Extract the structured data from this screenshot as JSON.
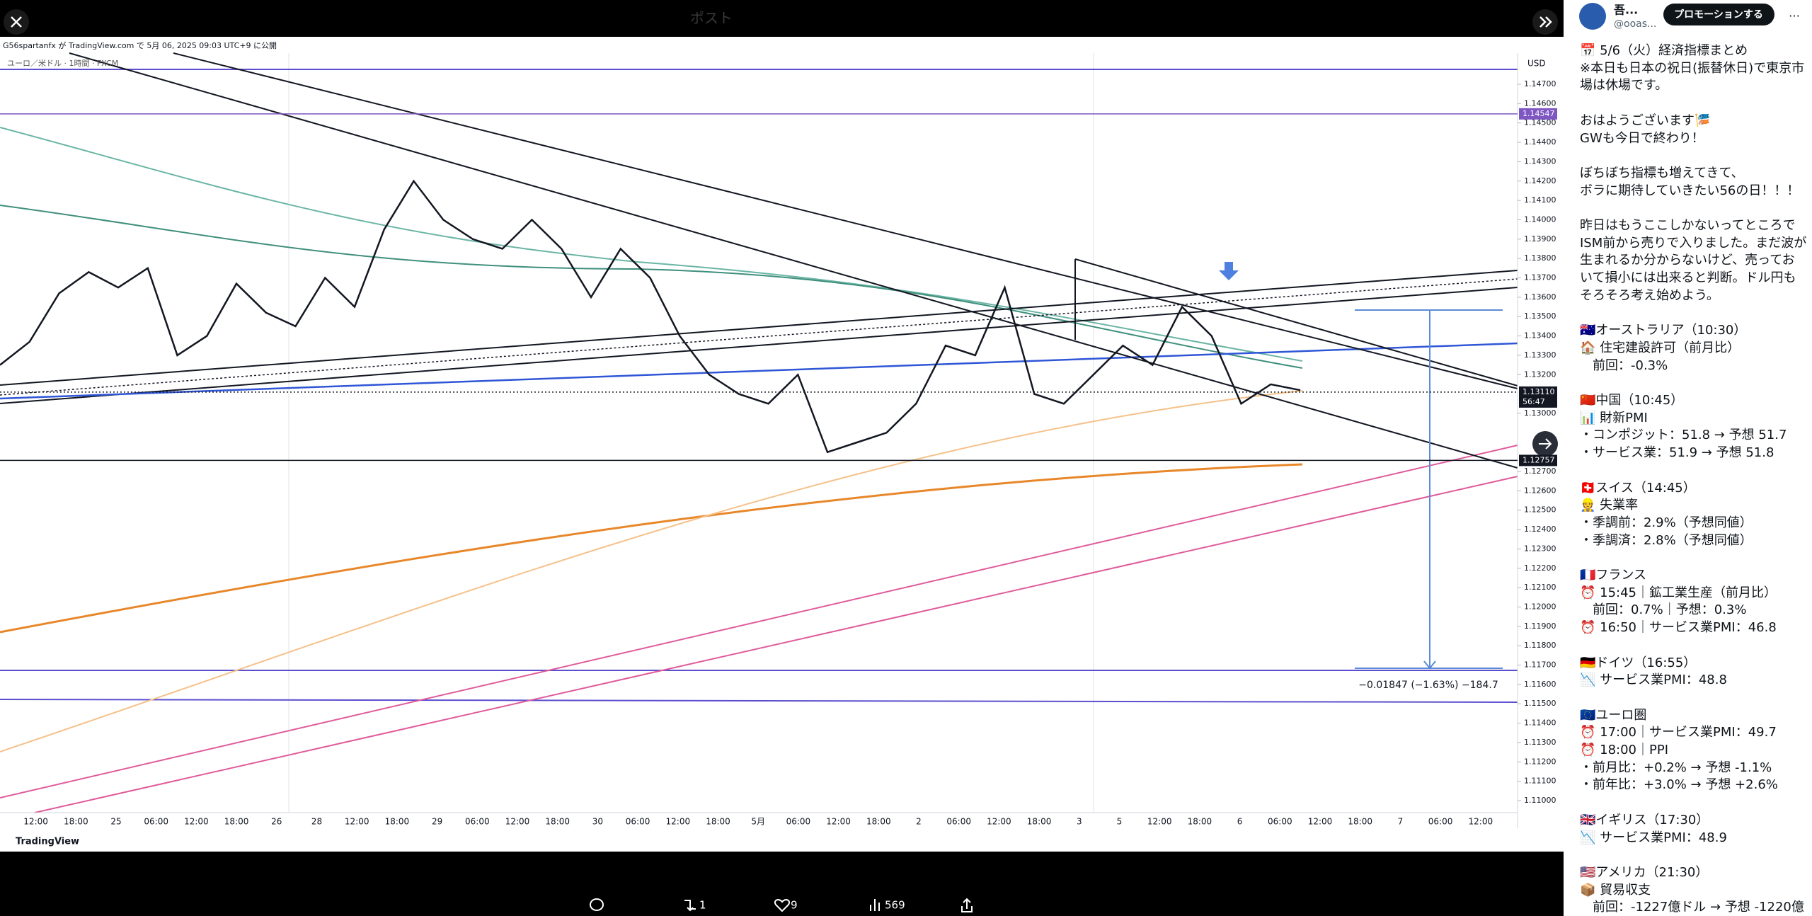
{
  "header": {
    "title": "ポスト"
  },
  "chart_data": {
    "type": "line",
    "attribution": "G56spartanfx が TradingView.com で 5月 06, 2025 09:03 UTC+9 に公開",
    "symbol": "ユーロ／米ドル · 1時間 · FXCM",
    "currency": "USD",
    "watermark": "TradingView",
    "color": "#131722",
    "values": [
      1.1325,
      1.1337,
      1.1362,
      1.1373,
      1.1365,
      1.1375,
      1.133,
      1.134,
      1.1367,
      1.1352,
      1.1345,
      1.137,
      1.1355,
      1.1395,
      1.142,
      1.14,
      1.139,
      1.1385,
      1.14,
      1.1385,
      1.136,
      1.1385,
      1.137,
      1.134,
      1.132,
      1.131,
      1.1305,
      1.132,
      1.128,
      1.1285,
      1.129,
      1.1305,
      1.1335,
      1.133,
      1.1365,
      1.131,
      1.1305,
      1.132,
      1.1335,
      1.1325,
      1.1355,
      1.134,
      1.1305,
      1.1315,
      1.1312
    ],
    "ylim": [
      1.11,
      1.147
    ],
    "yticks": [
      {
        "value": 1.147,
        "label": "1.14700"
      },
      {
        "value": 1.146,
        "label": "1.14600"
      },
      {
        "value": 1.145,
        "label": "1.14500"
      },
      {
        "value": 1.144,
        "label": "1.14400"
      },
      {
        "value": 1.143,
        "label": "1.14300"
      },
      {
        "value": 1.142,
        "label": "1.14200"
      },
      {
        "value": 1.141,
        "label": "1.14100"
      },
      {
        "value": 1.14,
        "label": "1.14000"
      },
      {
        "value": 1.139,
        "label": "1.13900"
      },
      {
        "value": 1.138,
        "label": "1.13800"
      },
      {
        "value": 1.137,
        "label": "1.13700"
      },
      {
        "value": 1.136,
        "label": "1.13600"
      },
      {
        "value": 1.135,
        "label": "1.13500"
      },
      {
        "value": 1.134,
        "label": "1.13400"
      },
      {
        "value": 1.133,
        "label": "1.13300"
      },
      {
        "value": 1.132,
        "label": "1.13200"
      },
      {
        "value": 1.13,
        "label": "1.13000"
      },
      {
        "value": 1.127,
        "label": "1.12700"
      },
      {
        "value": 1.126,
        "label": "1.12600"
      },
      {
        "value": 1.125,
        "label": "1.12500"
      },
      {
        "value": 1.124,
        "label": "1.12400"
      },
      {
        "value": 1.123,
        "label": "1.12300"
      },
      {
        "value": 1.122,
        "label": "1.12200"
      },
      {
        "value": 1.121,
        "label": "1.12100"
      },
      {
        "value": 1.12,
        "label": "1.12000"
      },
      {
        "value": 1.119,
        "label": "1.11900"
      },
      {
        "value": 1.118,
        "label": "1.11800"
      },
      {
        "value": 1.117,
        "label": "1.11700"
      },
      {
        "value": 1.116,
        "label": "1.11600"
      },
      {
        "value": 1.115,
        "label": "1.11500"
      },
      {
        "value": 1.114,
        "label": "1.11400"
      },
      {
        "value": 1.113,
        "label": "1.11300"
      },
      {
        "value": 1.112,
        "label": "1.11200"
      },
      {
        "value": 1.111,
        "label": "1.11100"
      },
      {
        "value": 1.11,
        "label": "1.11000"
      }
    ],
    "price_lines": [
      {
        "value": 1.14547,
        "label": "1.14547",
        "color": "#7e57c2"
      },
      {
        "value": 1.1311,
        "label": "1.13110",
        "color": "#131722",
        "countdown": "56:47"
      },
      {
        "value": 1.12757,
        "label": "1.12757",
        "color": "#131722"
      }
    ],
    "xtick_labels": [
      "12:00",
      "18:00",
      "25",
      "06:00",
      "12:00",
      "18:00",
      "26",
      "28",
      "12:00",
      "18:00",
      "29",
      "06:00",
      "12:00",
      "18:00",
      "30",
      "06:00",
      "12:00",
      "18:00",
      "5月",
      "06:00",
      "12:00",
      "18:00",
      "2",
      "06:00",
      "12:00",
      "18:00",
      "3",
      "5",
      "12:00",
      "18:00",
      "6",
      "06:00",
      "12:00",
      "18:00",
      "7",
      "06:00",
      "12:00"
    ],
    "measurement": "−0.01847 (−1.63%) −184.7"
  },
  "actions": {
    "retweets": "1",
    "likes": "9",
    "views": "569"
  },
  "author": {
    "name": "吾...",
    "handle": "@ooas...",
    "button": "プロモーションする",
    "more": "…"
  },
  "post": {
    "paragraphs": [
      [
        "📅 5/6（火）経済指標まとめ",
        "※本日も日本の祝日(振替休日)で東京市",
        "場は休場です。"
      ],
      [
        "おはようございます🎏",
        "GWも今日で終わり！"
      ],
      [
        "ぼちぼち指標も増えてきて、",
        "ボラに期待していきたい56の日！！！"
      ],
      [
        "昨日はもうここしかないってところで",
        "ISM前から売りで入りました。まだ波が",
        "生まれるか分からないけど、売ってお",
        "いて損小には出来ると判断。ドル円も",
        "そろそろ考え始めよう。"
      ],
      [
        "🇦🇺オーストラリア（10:30）",
        "🏠 住宅建設許可（前月比）",
        "　前回：-0.3%"
      ],
      [
        "🇨🇳中国（10:45）",
        "📊 財新PMI",
        "・コンポジット：51.8 → 予想 51.7",
        "・サービス業：51.9 → 予想 51.8"
      ],
      [
        "🇨🇭スイス（14:45）",
        "👷 失業率",
        "・季調前：2.9%（予想同値）",
        "・季調済：2.8%（予想同値）"
      ],
      [
        "🇫🇷フランス",
        "⏰ 15:45｜鉱工業生産（前月比）",
        "　前回：0.7%｜予想：0.3%",
        "⏰ 16:50｜サービス業PMI：46.8"
      ],
      [
        "🇩🇪ドイツ（16:55）",
        "📉 サービス業PMI：48.8"
      ],
      [
        "🇪🇺ユーロ圏",
        "⏰ 17:00｜サービス業PMI：49.7",
        "⏰ 18:00｜PPI",
        "・前月比：+0.2% → 予想 -1.1%",
        "・前年比：+3.0% → 予想 +2.6%"
      ],
      [
        "🇬🇧イギリス（17:30）",
        "📉 サービス業PMI：48.9"
      ],
      [
        "🇺🇸アメリカ（21:30）",
        "📦 貿易収支",
        "　前回：-1227億ドル → 予想 -1220億"
      ]
    ]
  }
}
